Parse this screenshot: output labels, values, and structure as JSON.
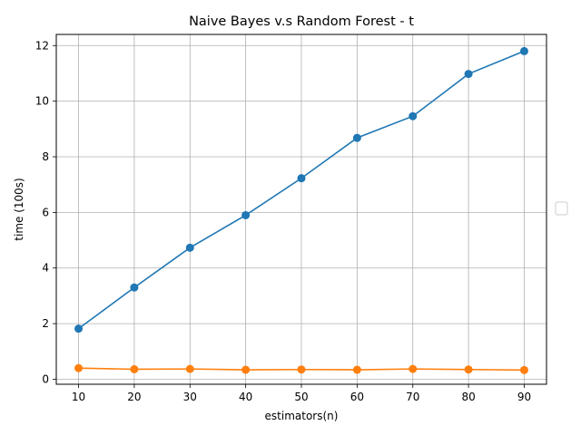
{
  "chart_data": {
    "type": "line",
    "title": "Naive Bayes v.s Random Forest - t",
    "xlabel": "estimators(n)",
    "ylabel": "time (100s)",
    "x": [
      10,
      20,
      30,
      40,
      50,
      60,
      70,
      80,
      90
    ],
    "xticks": [
      "10",
      "20",
      "30",
      "40",
      "50",
      "60",
      "70",
      "80",
      "90"
    ],
    "yticks": [
      "0",
      "2",
      "4",
      "6",
      "8",
      "10",
      "12"
    ],
    "xlim": [
      6,
      94
    ],
    "ylim": [
      -0.18,
      12.4
    ],
    "grid": true,
    "legend": "right, empty",
    "series": [
      {
        "color": "#1f77b4",
        "values": [
          1.82,
          3.3,
          4.73,
          5.9,
          7.23,
          8.68,
          9.46,
          10.98,
          11.8
        ]
      },
      {
        "color": "#ff7f0e",
        "values": [
          0.4,
          0.36,
          0.37,
          0.34,
          0.35,
          0.34,
          0.37,
          0.35,
          0.33
        ]
      }
    ]
  }
}
